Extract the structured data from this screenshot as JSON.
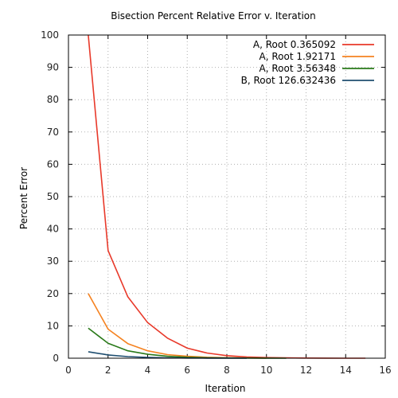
{
  "chart_data": {
    "type": "line",
    "title": "Bisection Percent Relative Error v. Iteration",
    "xlabel": "Iteration",
    "ylabel": "Percent Error",
    "xlim": [
      0,
      16
    ],
    "ylim": [
      0,
      100
    ],
    "xticks": [
      0,
      2,
      4,
      6,
      8,
      10,
      12,
      14,
      16
    ],
    "yticks": [
      0,
      10,
      20,
      30,
      40,
      50,
      60,
      70,
      80,
      90,
      100
    ],
    "grid": true,
    "legend_position": "top-right",
    "series": [
      {
        "name": "A, Root 0.365092",
        "color": "#e8392a",
        "x": [
          1,
          2,
          3,
          4,
          5,
          6,
          7,
          8,
          9,
          10,
          11,
          12,
          13,
          14,
          15
        ],
        "y": [
          100,
          33.3,
          19.0,
          11.0,
          6.2,
          3.1,
          1.6,
          0.8,
          0.4,
          0.2,
          0.1,
          0.05,
          0.02,
          0.01,
          0.005
        ]
      },
      {
        "name": "A, Root 1.92171",
        "color": "#f58220",
        "x": [
          1,
          2,
          3,
          4,
          5,
          6,
          7,
          8,
          9,
          10
        ],
        "y": [
          20.0,
          9.0,
          4.5,
          2.3,
          1.1,
          0.6,
          0.3,
          0.15,
          0.07,
          0.03
        ]
      },
      {
        "name": "A, Root 3.56348",
        "color": "#2a7a1a",
        "x": [
          1,
          2,
          3,
          4,
          5,
          6,
          7,
          8,
          9,
          10,
          11
        ],
        "y": [
          9.3,
          4.6,
          2.3,
          1.2,
          0.6,
          0.3,
          0.15,
          0.07,
          0.04,
          0.02,
          0.01
        ]
      },
      {
        "name": "B, Root 126.632436",
        "color": "#1f4e70",
        "x": [
          1,
          2,
          3,
          4,
          5,
          6,
          7,
          8,
          9
        ],
        "y": [
          2.0,
          1.0,
          0.5,
          0.25,
          0.12,
          0.06,
          0.03,
          0.015,
          0.008
        ]
      }
    ]
  }
}
